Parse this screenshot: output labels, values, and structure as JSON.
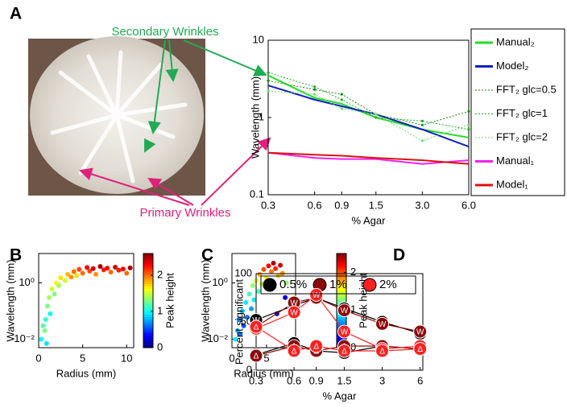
{
  "chart_data": [
    {
      "type": "line",
      "panel": "A",
      "x": [
        0.3,
        0.6,
        0.9,
        1.5,
        3,
        6
      ],
      "xscale": "log",
      "yscale": "log",
      "xlim": [
        0.3,
        6
      ],
      "xticks": [
        0.3,
        0.6,
        0.9,
        1.5,
        {
          "value": 3,
          "label": "3.0"
        },
        {
          "value": 6,
          "label": "6.0"
        }
      ],
      "ylim": [
        0.1,
        10
      ],
      "yticks": [
        0.1,
        1,
        10
      ],
      "xlabel": "% Agar",
      "ylabel": "Wavelength (mm)",
      "annotations": [
        "Secondary Wrinkles",
        "Primary Wrinkles"
      ],
      "series": [
        {
          "name": "Manual₂",
          "color": "#22dd22",
          "linestyle": "solid",
          "values": [
            3.5,
            1.8,
            1.5,
            1.0,
            0.7,
            0.55
          ]
        },
        {
          "name": "Model₂",
          "color": "#1020c0",
          "linestyle": "solid",
          "values": [
            2.6,
            1.7,
            1.4,
            1.1,
            0.7,
            0.42
          ]
        },
        {
          "name": "FFT₂ glc=0.5",
          "color": "#118811",
          "linestyle": "dotted",
          "values": [
            3.0,
            2.3,
            2.0,
            1.1,
            0.8,
            1.2
          ]
        },
        {
          "name": "FFT₂ glc=1",
          "color": "#22aa22",
          "linestyle": "dotted",
          "values": [
            3.8,
            2.5,
            1.7,
            1.0,
            0.9,
            0.7
          ]
        },
        {
          "name": "FFT₂ glc=2",
          "color": "#66dd66",
          "linestyle": "dotted",
          "values": [
            2.2,
            2.0,
            1.3,
            1.1,
            0.5,
            0.8
          ]
        },
        {
          "name": "Manual₁",
          "color": "#ee22ee",
          "linestyle": "solid",
          "values": [
            0.35,
            0.3,
            0.29,
            0.29,
            0.25,
            0.28
          ]
        },
        {
          "name": "Model₁",
          "color": "#dd1111",
          "linestyle": "solid",
          "values": [
            0.35,
            0.33,
            0.32,
            0.3,
            0.28,
            0.25
          ]
        }
      ]
    },
    {
      "type": "scatter",
      "panel": "B",
      "yscale": "log",
      "xlim": [
        0,
        10.8
      ],
      "xticks": [
        0,
        5,
        10
      ],
      "ylim": [
        0.005,
        11
      ],
      "yticks": [
        {
          "value": 0.01,
          "label": "10⁻²"
        },
        {
          "value": 1,
          "label": "10⁰"
        }
      ],
      "xlabel": "Radius (mm)",
      "ylabel": "Wavelength (mm)",
      "colorbar_label": "Peak height",
      "clim": [
        0,
        2.6
      ],
      "cticks": [
        0,
        1,
        2
      ],
      "x": [
        0.3,
        0.5,
        0.7,
        0.8,
        1,
        1.2,
        1.5,
        1.8,
        2,
        2.3,
        2.5,
        3,
        3.3,
        3.7,
        4,
        4.3,
        4.6,
        5,
        5.5,
        5.8,
        6.2,
        6.5,
        7,
        7.4,
        7.8,
        8.2,
        8.7,
        9.1,
        9.6,
        10,
        10.4,
        1.3,
        0.9
      ],
      "values": [
        0.01,
        0.03,
        0.02,
        0.05,
        0.15,
        0.3,
        0.6,
        0.4,
        1.0,
        0.8,
        1.5,
        1.2,
        2.0,
        1.6,
        2.5,
        1.8,
        3.0,
        2.2,
        3.5,
        2.6,
        3.2,
        2.0,
        3.8,
        2.9,
        3.3,
        2.4,
        3.6,
        2.8,
        3.1,
        2.2,
        3.4,
        0.08,
        0.007
      ],
      "color_values": [
        1.0,
        1.2,
        1.3,
        1.1,
        1.3,
        1.4,
        1.5,
        1.3,
        1.6,
        1.4,
        1.7,
        1.5,
        1.8,
        1.9,
        2.0,
        1.7,
        2.1,
        2.0,
        2.3,
        2.1,
        2.4,
        1.9,
        2.5,
        2.2,
        2.3,
        2.0,
        2.4,
        2.2,
        2.3,
        2.0,
        2.5,
        1.0,
        0.9
      ]
    },
    {
      "type": "scatter",
      "panel": "C",
      "yscale": "log",
      "xlim": [
        0,
        9.2
      ],
      "xticks": [
        0,
        5
      ],
      "ylim": [
        0.005,
        11
      ],
      "yticks": [
        {
          "value": 0.01,
          "label": "10⁻²"
        },
        {
          "value": 1,
          "label": "10⁰"
        }
      ],
      "xlabel": "Radius (mm)",
      "ylabel": "Wavelength (mm)",
      "colorbar_label": "Peak height",
      "clim": [
        0,
        2.5
      ],
      "cticks": [
        0,
        1,
        2
      ],
      "x": [
        0.5,
        0.8,
        1,
        1.2,
        1.5,
        1.7,
        2,
        2.2,
        2.5,
        2.8,
        3,
        3.2,
        3.5,
        3.8,
        4,
        4.3,
        4.6,
        5,
        5.3,
        5.7,
        6,
        6.3,
        6.7,
        7,
        7.3,
        7.7,
        7.9,
        6.5
      ],
      "values": [
        0.01,
        0.02,
        0.05,
        0.015,
        0.1,
        0.03,
        0.2,
        0.06,
        0.4,
        0.12,
        0.8,
        0.25,
        1.2,
        0.5,
        2.0,
        0.9,
        3.0,
        1.5,
        4.0,
        2.5,
        5.0,
        3.2,
        1.8,
        4.2,
        2.2,
        0.3,
        1.0,
        0.08
      ],
      "color_values": [
        0.9,
        0.8,
        0.7,
        0.6,
        0.8,
        0.5,
        0.9,
        0.6,
        1.1,
        0.7,
        1.3,
        0.9,
        1.5,
        1.1,
        1.8,
        1.4,
        2.0,
        1.6,
        2.2,
        1.9,
        2.4,
        2.1,
        1.7,
        2.3,
        1.8,
        0.2,
        1.3,
        0.3
      ]
    },
    {
      "type": "marker-line",
      "panel": "D",
      "xscale": "log",
      "x": [
        0.3,
        0.6,
        0.9,
        1.5,
        3,
        6
      ],
      "xlim": [
        0.3,
        6.3
      ],
      "xticks": [
        0.3,
        0.6,
        0.9,
        1.5,
        3,
        6
      ],
      "ylim": [
        0,
        100
      ],
      "yticks": [
        0,
        50,
        100
      ],
      "xlabel": "% Agar",
      "ylabel": "Percent significant",
      "markers": [
        "W",
        "Δ"
      ],
      "series": [
        {
          "name": "0.5%",
          "color": "#000000",
          "values": [
            52,
            67,
            75,
            64,
            50,
            38
          ],
          "values_delta": [
            16,
            28,
            20,
            18,
            25,
            22
          ]
        },
        {
          "name": "1%",
          "color": "#8b0a0a",
          "values": [
            45,
            70,
            75,
            62,
            48,
            40
          ],
          "values_delta": [
            15,
            25,
            20,
            25,
            25,
            22
          ]
        },
        {
          "name": "2%",
          "color": "#ff2020",
          "values": [
            43,
            60,
            78,
            40,
            22,
            25
          ],
          "values_delta": [
            45,
            20,
            25,
            20,
            20,
            22
          ]
        }
      ]
    }
  ]
}
